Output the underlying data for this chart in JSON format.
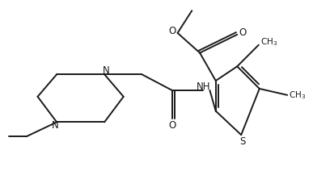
{
  "bg_color": "#ffffff",
  "line_color": "#1a1a1a",
  "line_width": 1.4,
  "font_size": 8.5,
  "fig_width": 3.87,
  "fig_height": 2.12,
  "dpi": 100,
  "xlim": [
    0,
    10
  ],
  "ylim": [
    0,
    5.5
  ]
}
